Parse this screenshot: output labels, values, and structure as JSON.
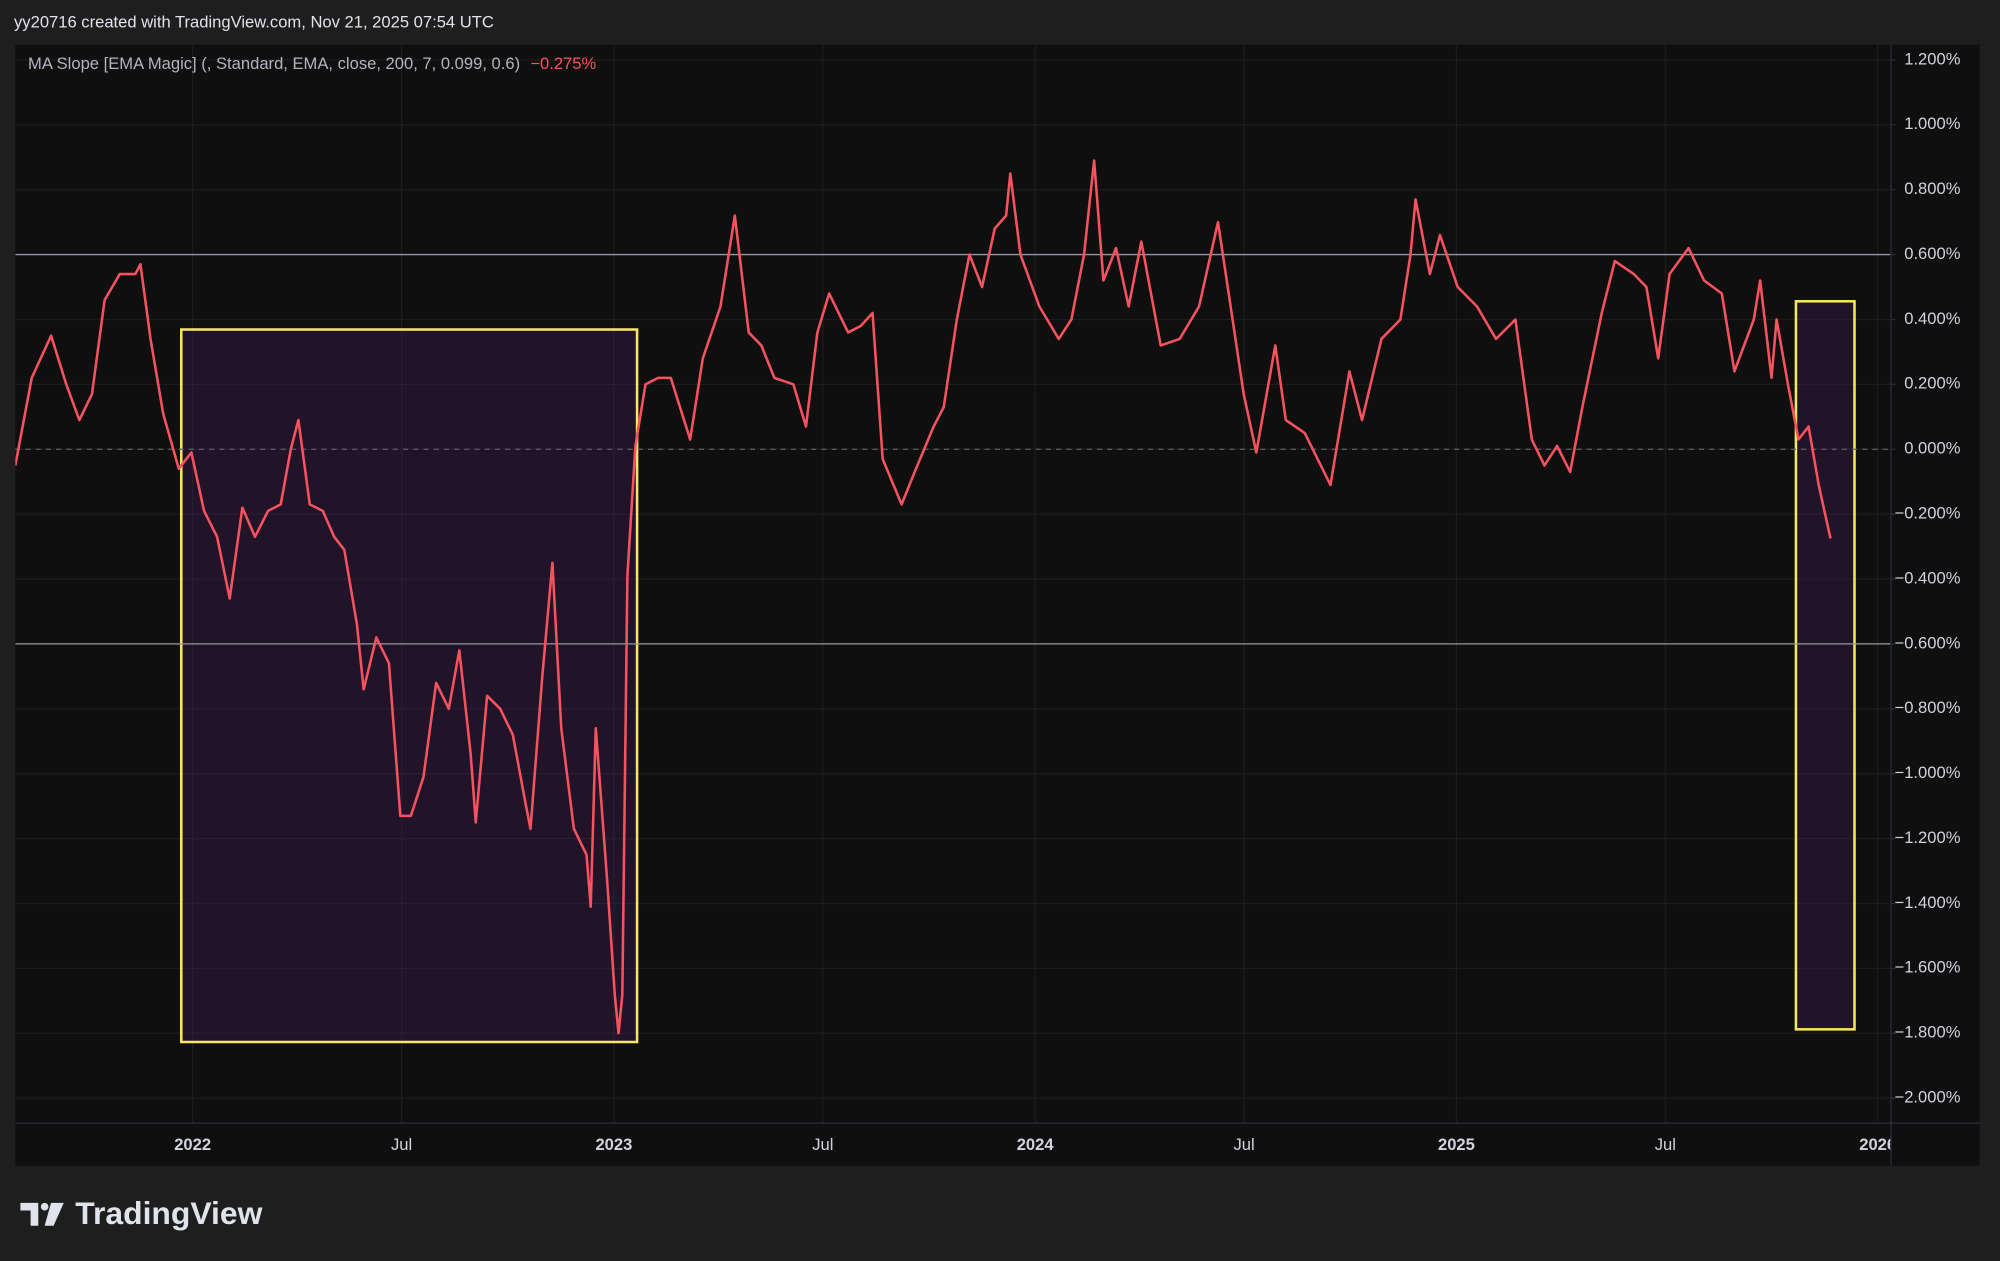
{
  "header": "yy20716 created with TradingView.com, Nov 21, 2025 07:54 UTC",
  "footer": {
    "brand": "TradingView"
  },
  "chart_data": {
    "type": "line",
    "title": "MA Slope [EMA Magic] (, Standard, EMA, close, 200, 7, 0.099, 0.6)",
    "current_value": {
      "value": -0.275,
      "label": "−0.275%"
    },
    "x": [
      2021.579,
      2021.618,
      2021.664,
      2021.7,
      2021.731,
      2021.761,
      2021.791,
      2021.827,
      2021.864,
      2021.876,
      2021.9,
      2021.93,
      2021.967,
      2021.997,
      2022.027,
      2022.058,
      2022.088,
      2022.118,
      2022.148,
      2022.179,
      2022.209,
      2022.233,
      2022.251,
      2022.278,
      2022.309,
      2022.336,
      2022.36,
      2022.39,
      2022.406,
      2022.436,
      2022.466,
      2022.493,
      2022.518,
      2022.548,
      2022.578,
      2022.608,
      2022.633,
      2022.66,
      2022.672,
      2022.699,
      2022.73,
      2022.76,
      2022.79,
      2022.802,
      2022.83,
      2022.854,
      2022.875,
      2022.905,
      2022.935,
      2022.945,
      2022.957,
      2022.984,
      2023.002,
      2023.011,
      2023.02,
      2023.032,
      2023.051,
      2023.075,
      2023.105,
      2023.135,
      2023.181,
      2023.211,
      2023.253,
      2023.287,
      2023.32,
      2023.35,
      2023.381,
      2023.426,
      2023.456,
      2023.483,
      2023.511,
      2023.556,
      2023.586,
      2023.614,
      2023.638,
      2023.683,
      2023.714,
      2023.759,
      2023.783,
      2023.814,
      2023.844,
      2023.874,
      2023.904,
      2023.931,
      2023.941,
      2023.965,
      2024.01,
      2024.056,
      2024.086,
      2024.116,
      2024.14,
      2024.162,
      2024.192,
      2024.222,
      2024.252,
      2024.298,
      2024.343,
      2024.389,
      2024.434,
      2024.464,
      2024.495,
      2024.525,
      2024.57,
      2024.595,
      2024.64,
      2024.701,
      2024.746,
      2024.776,
      2024.822,
      2024.867,
      2024.891,
      2024.903,
      2024.937,
      2024.961,
      2025.003,
      2025.049,
      2025.094,
      2025.14,
      2025.179,
      2025.209,
      2025.239,
      2025.27,
      2025.299,
      2025.345,
      2025.376,
      2025.421,
      2025.451,
      2025.479,
      2025.506,
      2025.551,
      2025.588,
      2025.63,
      2025.66,
      2025.706,
      2025.721,
      2025.748,
      2025.76,
      2025.787,
      2025.812,
      2025.836,
      2025.86,
      2025.888
    ],
    "series": [
      {
        "color": "#f7525f",
        "values": [
          -0.05,
          0.22,
          0.35,
          0.2,
          0.09,
          0.17,
          0.46,
          0.54,
          0.54,
          0.57,
          0.34,
          0.11,
          -0.06,
          -0.01,
          -0.19,
          -0.27,
          -0.46,
          -0.18,
          -0.27,
          -0.19,
          -0.17,
          0.0,
          0.09,
          -0.17,
          -0.19,
          -0.27,
          -0.31,
          -0.54,
          -0.74,
          -0.58,
          -0.66,
          -1.13,
          -1.13,
          -1.01,
          -0.72,
          -0.8,
          -0.62,
          -0.94,
          -1.15,
          -0.76,
          -0.8,
          -0.88,
          -1.09,
          -1.17,
          -0.7,
          -0.35,
          -0.86,
          -1.17,
          -1.25,
          -1.41,
          -0.86,
          -1.33,
          -1.68,
          -1.8,
          -1.68,
          -0.39,
          0.01,
          0.2,
          0.22,
          0.22,
          0.03,
          0.28,
          0.44,
          0.72,
          0.36,
          0.32,
          0.22,
          0.2,
          0.07,
          0.36,
          0.48,
          0.36,
          0.38,
          0.42,
          -0.03,
          -0.17,
          -0.07,
          0.07,
          0.13,
          0.4,
          0.6,
          0.5,
          0.68,
          0.72,
          0.85,
          0.6,
          0.44,
          0.34,
          0.4,
          0.6,
          0.89,
          0.52,
          0.62,
          0.44,
          0.64,
          0.32,
          0.34,
          0.44,
          0.7,
          0.44,
          0.17,
          -0.01,
          0.32,
          0.09,
          0.05,
          -0.11,
          0.24,
          0.09,
          0.34,
          0.4,
          0.6,
          0.77,
          0.54,
          0.66,
          0.5,
          0.44,
          0.34,
          0.4,
          0.03,
          -0.05,
          0.01,
          -0.07,
          0.13,
          0.42,
          0.58,
          0.54,
          0.5,
          0.28,
          0.54,
          0.62,
          0.52,
          0.48,
          0.24,
          0.4,
          0.52,
          0.22,
          0.4,
          0.2,
          0.03,
          0.07,
          -0.11,
          -0.275
        ]
      }
    ],
    "xlim": [
      2021.579,
      2026.03
    ],
    "xticks": [
      2022,
      {
        "value": 2022.496,
        "label": "Jul"
      },
      2023,
      {
        "value": 2023.496,
        "label": "Jul"
      },
      2024,
      {
        "value": 2024.496,
        "label": "Jul"
      },
      2025,
      {
        "value": 2025.496,
        "label": "Jul"
      },
      2026
    ],
    "ylim": [
      -2.075,
      1.247
    ],
    "yticks": [
      {
        "value": 1.2,
        "label": "1.200%"
      },
      {
        "value": 1.0,
        "label": "1.000%"
      },
      {
        "value": 0.8,
        "label": "0.800%"
      },
      {
        "value": 0.6,
        "label": "0.600%"
      },
      {
        "value": 0.4,
        "label": "0.400%"
      },
      {
        "value": 0.2,
        "label": "0.200%"
      },
      {
        "value": 0,
        "label": "0.000%"
      },
      {
        "value": -0.2,
        "label": "−0.200%"
      },
      {
        "value": -0.4,
        "label": "−0.400%"
      },
      {
        "value": -0.6,
        "label": "−0.600%"
      },
      {
        "value": -0.8,
        "label": "−0.800%"
      },
      {
        "value": -1.0,
        "label": "−1.000%"
      },
      {
        "value": -1.2,
        "label": "−1.200%"
      },
      {
        "value": -1.4,
        "label": "−1.400%"
      },
      {
        "value": -1.6,
        "label": "−1.600%"
      },
      {
        "value": -1.8,
        "label": "−1.800%"
      },
      {
        "value": -2.0,
        "label": "−2.000%"
      }
    ],
    "grid": true,
    "hlines": [
      {
        "value": 0.6,
        "style": "solid"
      },
      {
        "value": 0,
        "style": "dashed"
      },
      {
        "value": -0.6,
        "style": "solid"
      }
    ],
    "rectangles": [
      {
        "x": [
          2021.973,
          2023.055
        ],
        "y": [
          0.369,
          -1.827
        ],
        "color": "#f5e663"
      },
      {
        "x": [
          2025.806,
          2025.945
        ],
        "y": [
          0.456,
          -1.788
        ],
        "color": "#f5e663"
      }
    ]
  }
}
